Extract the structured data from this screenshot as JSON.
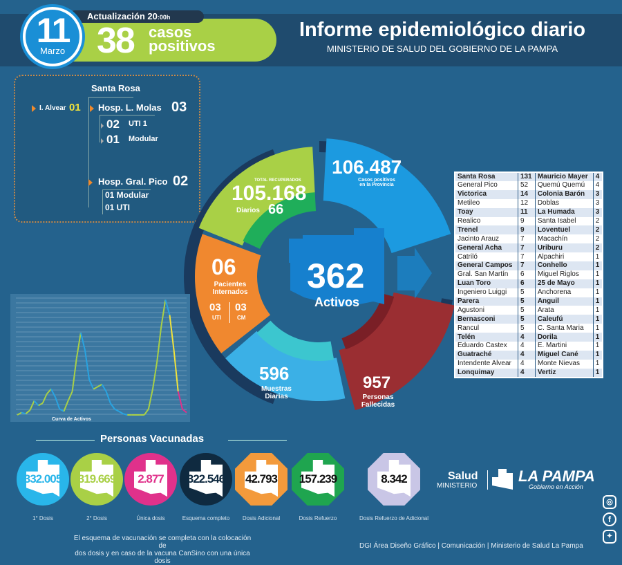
{
  "header": {
    "day": "11",
    "month": "Marzo",
    "update_label": "Actualización 20",
    "update_time": ":00h",
    "cases": "38",
    "cases_label_1": "casos",
    "cases_label_2": "positivos",
    "title": "Informe epidemiológico diario",
    "subtitle": "MINISTERIO DE SALUD DEL GOBIERNO DE LA PAMPA"
  },
  "hospitals": {
    "city": "Santa Rosa",
    "alvear_label": "I. Alvear",
    "alvear_value": "01",
    "molas_label": "Hosp. L. Molas",
    "molas_value": "03",
    "molas_uti_value": "02",
    "molas_uti_label": "UTI 1",
    "molas_mod_value": "01",
    "molas_mod_label": "Modular",
    "pico_label": "Hosp. Gral. Pico",
    "pico_value": "02",
    "pico_mod": "01 Modular",
    "pico_uti": "01 UTI"
  },
  "ring": {
    "recovered_label": "TOTAL RECUPERADOS",
    "recovered": "105.168",
    "daily_label": "Diarios",
    "daily": "66",
    "positives": "106.487",
    "positives_label_1": "Casos positivos",
    "positives_label_2": "en la Provincia",
    "active": "362",
    "active_label": "Activos",
    "hosp": "06",
    "hosp_label_1": "Pacientes",
    "hosp_label_2": "Internados",
    "uti": "03",
    "uti_label": "UTI",
    "cm": "03",
    "cm_label": "CM",
    "samples": "596",
    "samples_label_1": "Muestras",
    "samples_label_2": "Diarias",
    "deaths": "957",
    "deaths_label_1": "Personas",
    "deaths_label_2": "Fallecidas"
  },
  "localities": [
    [
      "Santa Rosa",
      "131",
      "Mauricio Mayer",
      "4"
    ],
    [
      "General Pico",
      "52",
      "Quemú Quemú",
      "4"
    ],
    [
      "Victorica",
      "14",
      "Colonia Barón",
      "3"
    ],
    [
      "Metileo",
      "12",
      "Doblas",
      "3"
    ],
    [
      "Toay",
      "11",
      "La Humada",
      "3"
    ],
    [
      "Realico",
      "9",
      "Santa Isabel",
      "2"
    ],
    [
      "Trenel",
      "9",
      "Loventuel",
      "2"
    ],
    [
      "Jacinto Arauz",
      "7",
      "Macachín",
      "2"
    ],
    [
      "General Acha",
      "7",
      "Uriburu",
      "2"
    ],
    [
      "Catriló",
      "7",
      "Alpachiri",
      "1"
    ],
    [
      "General Campos",
      "7",
      "Conhello",
      "1"
    ],
    [
      "Gral. San Martín",
      "6",
      "Miguel Riglos",
      "1"
    ],
    [
      "Luan Toro",
      "6",
      "25 de Mayo",
      "1"
    ],
    [
      "Ingeniero Luiggi",
      "5",
      "Anchorena",
      "1"
    ],
    [
      "Parera",
      "5",
      "Anguil",
      "1"
    ],
    [
      "Agustoni",
      "5",
      "Arata",
      "1"
    ],
    [
      "Bernasconi",
      "5",
      "Caleufú",
      "1"
    ],
    [
      "Rancul",
      "5",
      "C. Santa Maria",
      "1"
    ],
    [
      "Telén",
      "4",
      "Dorila",
      "1"
    ],
    [
      "Eduardo Castex",
      "4",
      "E. Martini",
      "1"
    ],
    [
      "Guatraché",
      "4",
      "Miguel Cané",
      "1"
    ],
    [
      "Intendente Alvear",
      "4",
      "Monte Nievas",
      "1"
    ],
    [
      "Lonquimay",
      "4",
      "Vertiz",
      "1"
    ]
  ],
  "chart_data": {
    "type": "line",
    "title": "Curva de Activos",
    "values": [
      0,
      2,
      1,
      4,
      12,
      8,
      10,
      18,
      22,
      15,
      5,
      3,
      12,
      20,
      48,
      70,
      55,
      30,
      22,
      24,
      26,
      20,
      10,
      5,
      3,
      1,
      0,
      0,
      0,
      0,
      0,
      5,
      22,
      45,
      75,
      98,
      85,
      55,
      20,
      5,
      2
    ],
    "colors": [
      "#29a3e0",
      "#a9d046",
      "#f1e33c",
      "#e0318b"
    ]
  },
  "vaccines": {
    "title": "Personas Vacunadas",
    "items": [
      {
        "value": "332.005",
        "label": "1° Dosis",
        "color": "#29b6ea",
        "text": "#29b6ea"
      },
      {
        "value": "319.669",
        "label": "2° Dosis",
        "color": "#a9d046",
        "text": "#a9d046"
      },
      {
        "value": "2.877",
        "label": "Única dosis",
        "color": "#e0318b",
        "text": "#e0318b"
      },
      {
        "value": "322.546",
        "label": "Esquema completo",
        "color": "#0f2a40",
        "text": "#0f2a40"
      },
      {
        "value": "42.793",
        "label": "Dosis Adicional",
        "color": "#f39a3c",
        "text": "#111"
      },
      {
        "value": "157.239",
        "label": "Dosis Refuerzo",
        "color": "#1fa54f",
        "text": "#111"
      },
      {
        "value": "8.342",
        "label": "Dosis Refuerzo de Adicional",
        "color": "#c9c6e6",
        "text": "#111"
      }
    ]
  },
  "footer": {
    "note_1": "El esquema de vacunación se completa con la colocación de",
    "note_2": "dos dosis y en caso de la vacuna CanSino con una única dosis",
    "credits": "DGI Área Diseño Gráfico  | Comunicación | Ministerio de Salud La Pampa",
    "logo_salud": "Salud",
    "logo_ministerio": "MINISTERIO",
    "logo_lapampa": "LA PAMPA",
    "logo_gob": "Gobierno en Acción"
  }
}
